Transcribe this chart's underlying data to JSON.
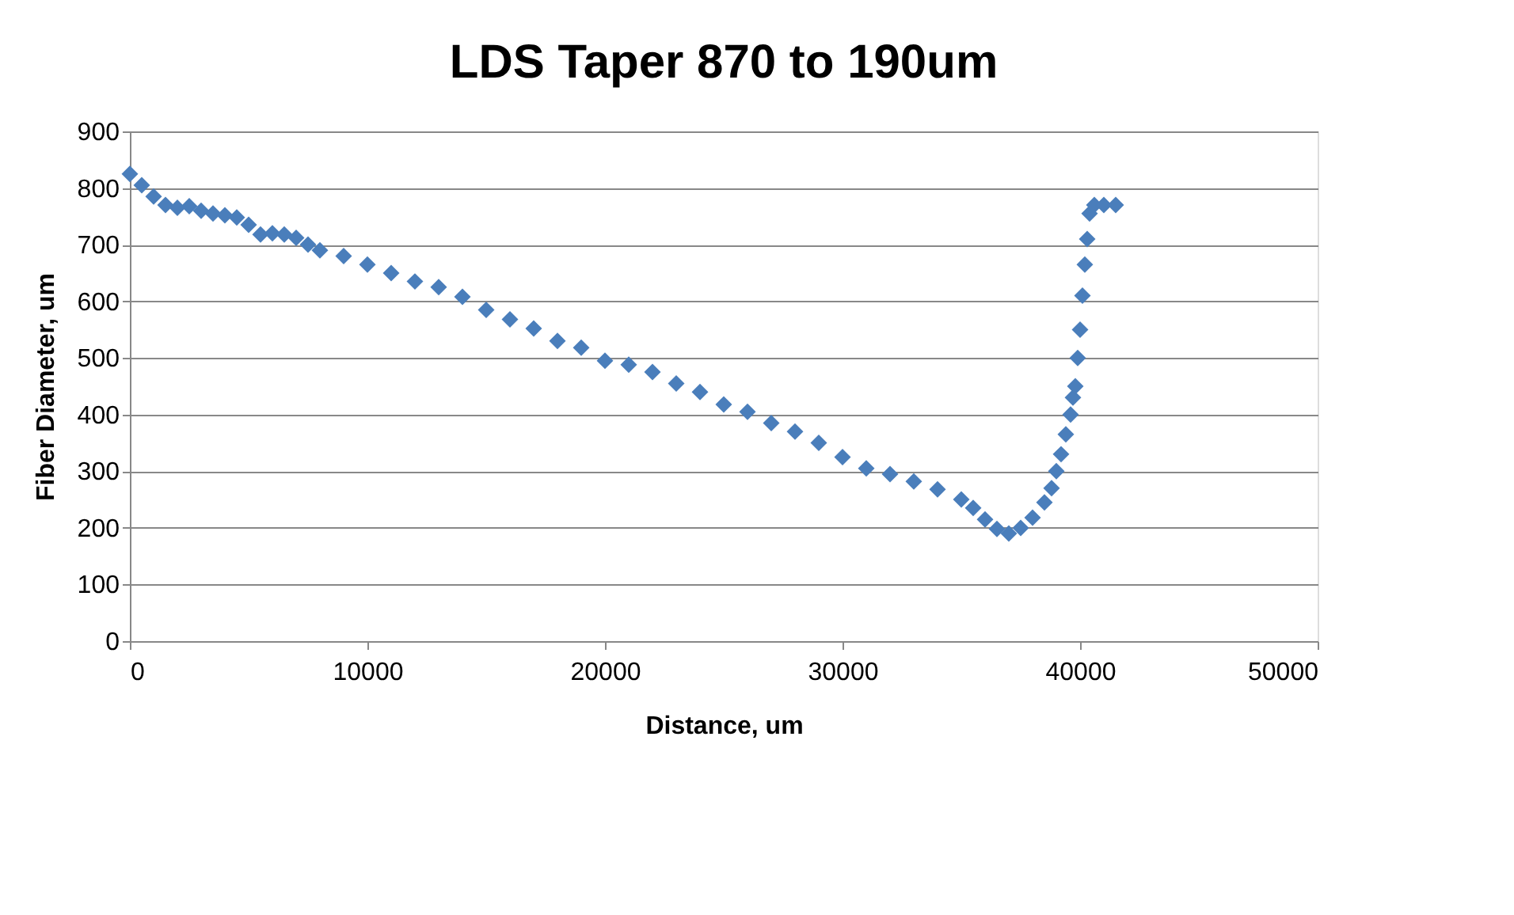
{
  "chart_data": {
    "type": "scatter",
    "title": "LDS Taper 870 to 190um",
    "xlabel": "Distance, um",
    "ylabel": "Fiber Diameter, um",
    "x": [
      0,
      500,
      1000,
      1500,
      2000,
      2500,
      3000,
      3500,
      4000,
      4500,
      5000,
      5500,
      6000,
      6500,
      7000,
      7500,
      8000,
      9000,
      10000,
      11000,
      12000,
      13000,
      14000,
      15000,
      16000,
      17000,
      18000,
      19000,
      20000,
      21000,
      22000,
      23000,
      24000,
      25000,
      26000,
      27000,
      28000,
      29000,
      30000,
      31000,
      32000,
      33000,
      34000,
      35000,
      35500,
      36000,
      36500,
      37000,
      37500,
      38000,
      38500,
      38800,
      39000,
      39200,
      39400,
      39600,
      39700,
      39800,
      39900,
      40000,
      40100,
      40200,
      40300,
      40400,
      40600,
      41000,
      41500
    ],
    "series": [
      {
        "color": "#4a7ebb",
        "values": [
          825,
          805,
          785,
          770,
          765,
          768,
          760,
          755,
          752,
          748,
          735,
          718,
          720,
          718,
          712,
          700,
          690,
          680,
          665,
          650,
          635,
          625,
          608,
          585,
          568,
          552,
          530,
          518,
          495,
          488,
          475,
          455,
          440,
          418,
          405,
          385,
          370,
          350,
          325,
          305,
          295,
          282,
          268,
          250,
          235,
          215,
          198,
          190,
          200,
          218,
          245,
          270,
          300,
          330,
          365,
          400,
          430,
          450,
          500,
          550,
          610,
          665,
          710,
          755,
          770,
          770,
          770
        ]
      }
    ],
    "xlim": [
      0,
      50000
    ],
    "xticks": [
      0,
      10000,
      20000,
      30000,
      40000,
      50000
    ],
    "ylim": [
      0,
      900
    ],
    "yticks": [
      0,
      100,
      200,
      300,
      400,
      500,
      600,
      700,
      800,
      900
    ],
    "grid": "y",
    "marker": "diamond",
    "legend": false
  }
}
